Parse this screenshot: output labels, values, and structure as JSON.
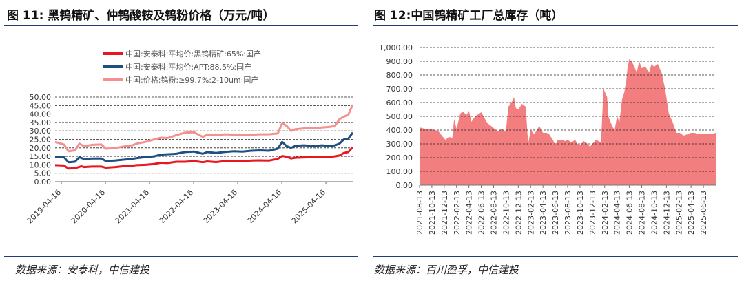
{
  "figures": [
    {
      "title": "图 11: 黑钨精矿、仲钨酸铵及钨粉价格（万元/吨）",
      "source": "数据来源：安泰科，中信建投"
    },
    {
      "title": "图 12:中国钨精矿工厂总库存（吨）",
      "source": "数据来源：百川盈孚，中信建投"
    }
  ],
  "chart_data": [
    {
      "type": "line",
      "title": "黑钨精矿、仲钨酸铵及钨粉价格（万元/吨）",
      "xlabel": "",
      "ylabel": "万元/吨",
      "ylim": [
        0,
        50
      ],
      "grid": true,
      "legend_position": "top-right",
      "yticks": [
        "0.00",
        "5.00",
        "10.00",
        "15.00",
        "20.00",
        "25.00",
        "30.00",
        "35.00",
        "40.00",
        "45.00",
        "50.00"
      ],
      "xticks": [
        "2019-04-16",
        "2020-04-16",
        "2021-04-16",
        "2022-04-16",
        "2023-04-16",
        "2024-04-16",
        "2025-04-16"
      ],
      "x_start": 2019.15,
      "x_end": 2025.9,
      "series": [
        {
          "name": "中国:安泰科:平均价:黑钨精矿:65%:国产",
          "color": "#e8161f",
          "x": [
            2019.15,
            2019.35,
            2019.45,
            2019.6,
            2019.75,
            2019.8,
            2020.0,
            2020.2,
            2020.3,
            2020.4,
            2020.5,
            2020.7,
            2020.9,
            2021.0,
            2021.2,
            2021.4,
            2021.55,
            2021.7,
            2021.9,
            2022.1,
            2022.3,
            2022.5,
            2022.6,
            2022.8,
            2023.0,
            2023.2,
            2023.4,
            2023.6,
            2023.8,
            2024.0,
            2024.2,
            2024.3,
            2024.4,
            2024.5,
            2024.6,
            2024.8,
            2025.0,
            2025.2,
            2025.4,
            2025.5,
            2025.6,
            2025.7,
            2025.8,
            2025.9
          ],
          "values": [
            9.8,
            9.6,
            7.8,
            8.0,
            9.2,
            8.7,
            9.0,
            9.0,
            8.3,
            8.5,
            8.6,
            9.2,
            9.5,
            9.8,
            10.0,
            10.5,
            11.2,
            11.0,
            11.8,
            11.8,
            12.2,
            11.5,
            12.0,
            11.6,
            12.2,
            12.4,
            12.0,
            12.5,
            12.6,
            12.5,
            13.5,
            15.2,
            14.8,
            13.8,
            14.2,
            14.4,
            14.5,
            14.6,
            14.8,
            15.0,
            15.5,
            17.0,
            17.5,
            20.5
          ]
        },
        {
          "name": "中国:安泰科:平均价:APT:88.5%:国产",
          "color": "#1d4f82",
          "x": [
            2019.15,
            2019.35,
            2019.45,
            2019.6,
            2019.7,
            2019.8,
            2020.0,
            2020.2,
            2020.3,
            2020.5,
            2020.7,
            2020.9,
            2021.0,
            2021.2,
            2021.4,
            2021.55,
            2021.7,
            2021.9,
            2022.1,
            2022.3,
            2022.5,
            2022.6,
            2022.8,
            2023.0,
            2023.2,
            2023.4,
            2023.6,
            2023.8,
            2024.0,
            2024.2,
            2024.3,
            2024.4,
            2024.5,
            2024.6,
            2024.8,
            2025.0,
            2025.2,
            2025.4,
            2025.5,
            2025.6,
            2025.7,
            2025.8,
            2025.9
          ],
          "values": [
            14.8,
            14.5,
            11.5,
            11.8,
            14.5,
            13.5,
            13.7,
            13.8,
            12.2,
            12.5,
            13.0,
            13.5,
            14.0,
            14.5,
            15.0,
            16.0,
            16.2,
            16.5,
            17.5,
            17.8,
            16.5,
            17.5,
            17.0,
            17.6,
            18.0,
            17.8,
            18.3,
            18.5,
            18.3,
            19.5,
            23.5,
            21.0,
            20.0,
            21.2,
            21.5,
            21.0,
            21.5,
            21.0,
            21.5,
            22.5,
            25.0,
            25.5,
            29.0
          ]
        },
        {
          "name": "中国:价格:钨粉:≥99.7%:2-10um:国产",
          "color": "#f49090",
          "x": [
            2019.15,
            2019.35,
            2019.45,
            2019.6,
            2019.7,
            2019.8,
            2020.0,
            2020.2,
            2020.3,
            2020.5,
            2020.7,
            2020.9,
            2021.0,
            2021.2,
            2021.4,
            2021.55,
            2021.7,
            2021.9,
            2022.1,
            2022.3,
            2022.5,
            2022.6,
            2022.8,
            2023.0,
            2023.2,
            2023.4,
            2023.6,
            2023.8,
            2024.0,
            2024.2,
            2024.3,
            2024.4,
            2024.5,
            2024.6,
            2024.8,
            2025.0,
            2025.2,
            2025.4,
            2025.5,
            2025.6,
            2025.7,
            2025.8,
            2025.9
          ],
          "values": [
            23.5,
            22.0,
            18.0,
            18.5,
            22.5,
            21.0,
            21.8,
            22.0,
            19.5,
            19.8,
            20.8,
            21.5,
            22.5,
            23.5,
            25.0,
            26.0,
            25.8,
            27.5,
            29.0,
            29.2,
            26.5,
            27.8,
            27.5,
            28.0,
            27.8,
            27.5,
            27.8,
            28.0,
            28.0,
            28.5,
            34.5,
            33.0,
            30.0,
            31.0,
            31.5,
            31.5,
            32.0,
            32.5,
            33.0,
            37.0,
            38.5,
            39.5,
            45.5
          ]
        }
      ]
    },
    {
      "type": "area",
      "title": "中国钨精矿工厂总库存（吨）",
      "xlabel": "",
      "ylabel": "吨",
      "ylim": [
        0,
        1000
      ],
      "grid": true,
      "legend_position": "none",
      "color": "#f37e80",
      "yticks": [
        "0.00",
        "100.00",
        "200.00",
        "300.00",
        "400.00",
        "500.00",
        "600.00",
        "700.00",
        "800.00",
        "900.00",
        "1,000.00"
      ],
      "xticks": [
        "2021-08-13",
        "2021-10-13",
        "2021-12-13",
        "2022-02-13",
        "2022-04-13",
        "2022-06-13",
        "2022-08-13",
        "2022-10-13",
        "2022-12-13",
        "2023-02-13",
        "2023-04-13",
        "2023-06-13",
        "2023-08-13",
        "2023-10-13",
        "2023-12-13",
        "2024-02-13",
        "2024-04-13",
        "2024-06-13",
        "2024-08-13",
        "2024-10-13",
        "2024-12-13",
        "2025-02-13",
        "2025-04-13",
        "2025-06-13"
      ],
      "x": [
        0,
        0.4,
        1,
        1.5,
        1.8,
        2.1,
        2.3,
        2.5,
        2.65,
        2.8,
        3.0,
        3.3,
        3.5,
        3.8,
        4.0,
        4.2,
        4.5,
        5.0,
        5.5,
        5.8,
        6.0,
        6.3,
        6.5,
        6.7,
        6.85,
        7.0,
        7.2,
        7.5,
        7.65,
        7.8,
        8.0,
        8.3,
        8.6,
        8.8,
        9.0,
        9.3,
        9.5,
        9.7,
        10.0,
        10.3,
        10.5,
        10.8,
        11.0,
        11.2,
        11.5,
        11.8,
        12.0,
        12.3,
        12.6,
        12.8,
        13.0,
        13.3,
        13.6,
        13.8,
        14.0,
        14.3,
        14.5,
        14.7,
        14.9,
        15.0,
        15.2,
        15.3,
        15.6,
        15.8,
        16.0,
        16.2,
        16.4,
        16.6,
        16.75,
        16.85,
        17.0,
        17.3,
        17.6,
        17.8,
        18.0,
        18.3,
        18.6,
        18.8,
        19.0,
        19.3,
        19.6,
        19.9,
        20.2,
        20.5,
        20.8,
        21.1,
        21.4,
        21.7,
        22.0,
        22.3,
        22.6,
        22.9,
        23.2,
        23.5,
        23.8,
        24.0
      ],
      "values": [
        420,
        410,
        405,
        395,
        360,
        330,
        345,
        350,
        340,
        480,
        410,
        520,
        535,
        510,
        540,
        460,
        500,
        530,
        450,
        430,
        415,
        390,
        400,
        410,
        390,
        400,
        570,
        610,
        640,
        560,
        550,
        590,
        570,
        300,
        400,
        370,
        400,
        430,
        380,
        380,
        370,
        330,
        290,
        330,
        330,
        320,
        330,
        310,
        330,
        300,
        290,
        320,
        300,
        280,
        300,
        330,
        320,
        310,
        700,
        680,
        640,
        500,
        430,
        400,
        500,
        460,
        620,
        680,
        760,
        850,
        920,
        880,
        820,
        900,
        850,
        860,
        820,
        880,
        860,
        880,
        820,
        700,
        520,
        460,
        380,
        380,
        360,
        370,
        380,
        380,
        370,
        370,
        370,
        370,
        375,
        380
      ]
    }
  ]
}
